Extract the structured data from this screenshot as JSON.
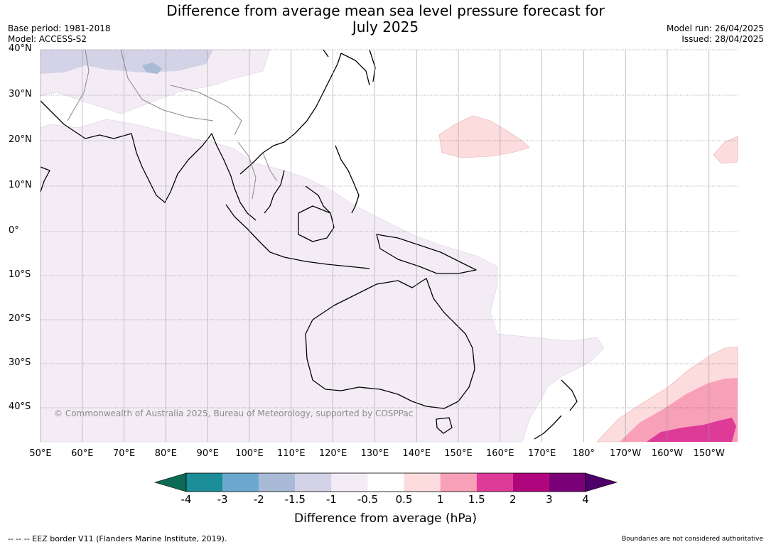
{
  "header": {
    "title_line1": "Difference from average mean sea level pressure forecast for",
    "title_line2": "July 2025",
    "base_period": "Base period: 1981-2018",
    "model": "Model: ACCESS-S2",
    "model_run": "Model run: 26/04/2025",
    "issued": "Issued: 28/04/2025"
  },
  "map": {
    "copyright": "© Commonwealth of Australia 2025, Bureau of Meteorology, supported by COSPPac",
    "lat_labels": [
      "40°N",
      "30°N",
      "20°N",
      "10°N",
      "0°",
      "10°S",
      "20°S",
      "30°S",
      "40°S"
    ],
    "lon_labels": [
      "50°E",
      "60°E",
      "70°E",
      "80°E",
      "90°E",
      "100°E",
      "110°E",
      "120°E",
      "130°E",
      "140°E",
      "150°E",
      "160°E",
      "170°E",
      "180°",
      "170°W",
      "160°W",
      "150°W"
    ],
    "colors": {
      "land_outline": "#000000",
      "borders": "#888888",
      "grid": "#555555",
      "ocean": "#ffffff"
    }
  },
  "colorbar": {
    "title": "Difference from average (hPa)",
    "tick_labels": [
      "-4",
      "-3",
      "-2",
      "-1.5",
      "-1",
      "-0.5",
      "0.5",
      "1",
      "1.5",
      "2",
      "3",
      "4"
    ],
    "under_color": "#0b6b55",
    "over_color": "#4c0068",
    "bin_colors": [
      "#1a8d96",
      "#6aa8cf",
      "#a8bad6",
      "#d3d2e6",
      "#f3ecf5",
      "#ffffff",
      "#fcdcdc",
      "#f8a0b8",
      "#de3a98",
      "#b0057d",
      "#7a0078"
    ]
  },
  "footer": {
    "eez_note": "--  --  -- EEZ border V11 (Flanders Marine Institute, 2019).",
    "disclaimer": "Boundaries are not considered authoritative"
  }
}
